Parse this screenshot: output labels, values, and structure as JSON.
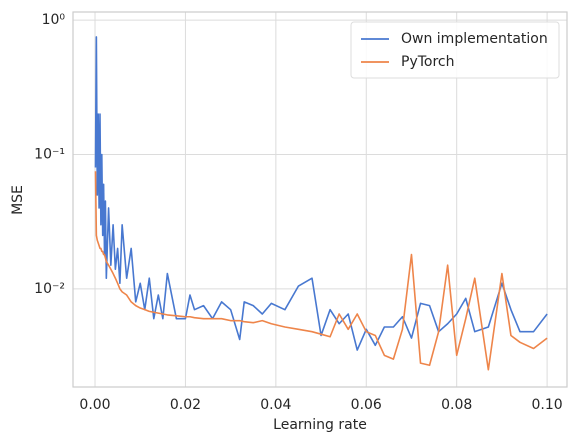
{
  "chart_data": {
    "type": "line",
    "xlabel": "Learning rate",
    "ylabel": "MSE",
    "x": [
      0.0001,
      0.0003,
      0.0005,
      0.0007,
      0.0009,
      0.0011,
      0.0013,
      0.0015,
      0.0017,
      0.0019,
      0.0021,
      0.0023,
      0.0025,
      0.003,
      0.0035,
      0.004,
      0.0045,
      0.005,
      0.0055,
      0.006,
      0.007,
      0.008,
      0.009,
      0.01,
      0.011,
      0.012,
      0.013,
      0.014,
      0.015,
      0.016,
      0.018,
      0.02,
      0.021,
      0.022,
      0.024,
      0.026,
      0.028,
      0.03,
      0.032,
      0.033,
      0.035,
      0.037,
      0.039,
      0.042,
      0.045,
      0.048,
      0.05,
      0.052,
      0.054,
      0.056,
      0.058,
      0.06,
      0.062,
      0.064,
      0.066,
      0.068,
      0.07,
      0.072,
      0.074,
      0.076,
      0.078,
      0.08,
      0.082,
      0.084,
      0.087,
      0.09,
      0.092,
      0.094,
      0.097,
      0.1
    ],
    "series": [
      {
        "name": "Own implementation",
        "color": "#4878d0",
        "values": [
          0.08,
          0.75,
          0.05,
          0.2,
          0.04,
          0.2,
          0.03,
          0.1,
          0.025,
          0.06,
          0.018,
          0.045,
          0.012,
          0.04,
          0.015,
          0.03,
          0.014,
          0.02,
          0.011,
          0.03,
          0.012,
          0.02,
          0.008,
          0.011,
          0.007,
          0.012,
          0.006,
          0.009,
          0.006,
          0.013,
          0.006,
          0.006,
          0.009,
          0.007,
          0.0075,
          0.006,
          0.008,
          0.007,
          0.0042,
          0.008,
          0.0075,
          0.0065,
          0.0078,
          0.007,
          0.0105,
          0.012,
          0.0045,
          0.007,
          0.0055,
          0.0065,
          0.0035,
          0.005,
          0.0038,
          0.0052,
          0.0052,
          0.0062,
          0.0043,
          0.0078,
          0.0075,
          0.0048,
          0.0055,
          0.0065,
          0.0085,
          0.0048,
          0.0052,
          0.011,
          0.007,
          0.0048,
          0.0048,
          0.0065
        ]
      },
      {
        "name": "PyTorch",
        "color": "#ee854a",
        "values": [
          0.075,
          0.025,
          0.023,
          0.022,
          0.021,
          0.02,
          0.02,
          0.019,
          0.019,
          0.018,
          0.018,
          0.017,
          0.016,
          0.015,
          0.014,
          0.013,
          0.012,
          0.011,
          0.01,
          0.0095,
          0.009,
          0.008,
          0.0075,
          0.0072,
          0.007,
          0.0068,
          0.0067,
          0.0066,
          0.0065,
          0.0064,
          0.0063,
          0.0062,
          0.0062,
          0.0061,
          0.006,
          0.006,
          0.006,
          0.0058,
          0.0058,
          0.0057,
          0.0056,
          0.0058,
          0.0055,
          0.0052,
          0.005,
          0.0048,
          0.0046,
          0.0044,
          0.0065,
          0.005,
          0.0065,
          0.0048,
          0.0045,
          0.0032,
          0.003,
          0.005,
          0.018,
          0.0028,
          0.0027,
          0.0048,
          0.015,
          0.0032,
          0.006,
          0.012,
          0.0025,
          0.013,
          0.0045,
          0.004,
          0.0036,
          0.0043
        ]
      }
    ],
    "xlim": [
      -0.00487,
      0.1044
    ],
    "xticks": [
      {
        "value": 0,
        "label": "0.00"
      },
      {
        "value": 0.02,
        "label": "0.02"
      },
      {
        "value": 0.04,
        "label": "0.04"
      },
      {
        "value": 0.06,
        "label": "0.06"
      },
      {
        "value": 0.08,
        "label": "0.08"
      },
      {
        "value": 0.1,
        "label": "0.10"
      }
    ],
    "ylim": [
      0.00186,
      1.15
    ],
    "yticks": [
      {
        "value": 0.01,
        "label": "10⁻²"
      },
      {
        "value": 0.1,
        "label": "10⁻¹"
      },
      {
        "value": 1,
        "label": "10⁰"
      }
    ],
    "yscale": "log",
    "grid": true,
    "legend": "upper right"
  }
}
